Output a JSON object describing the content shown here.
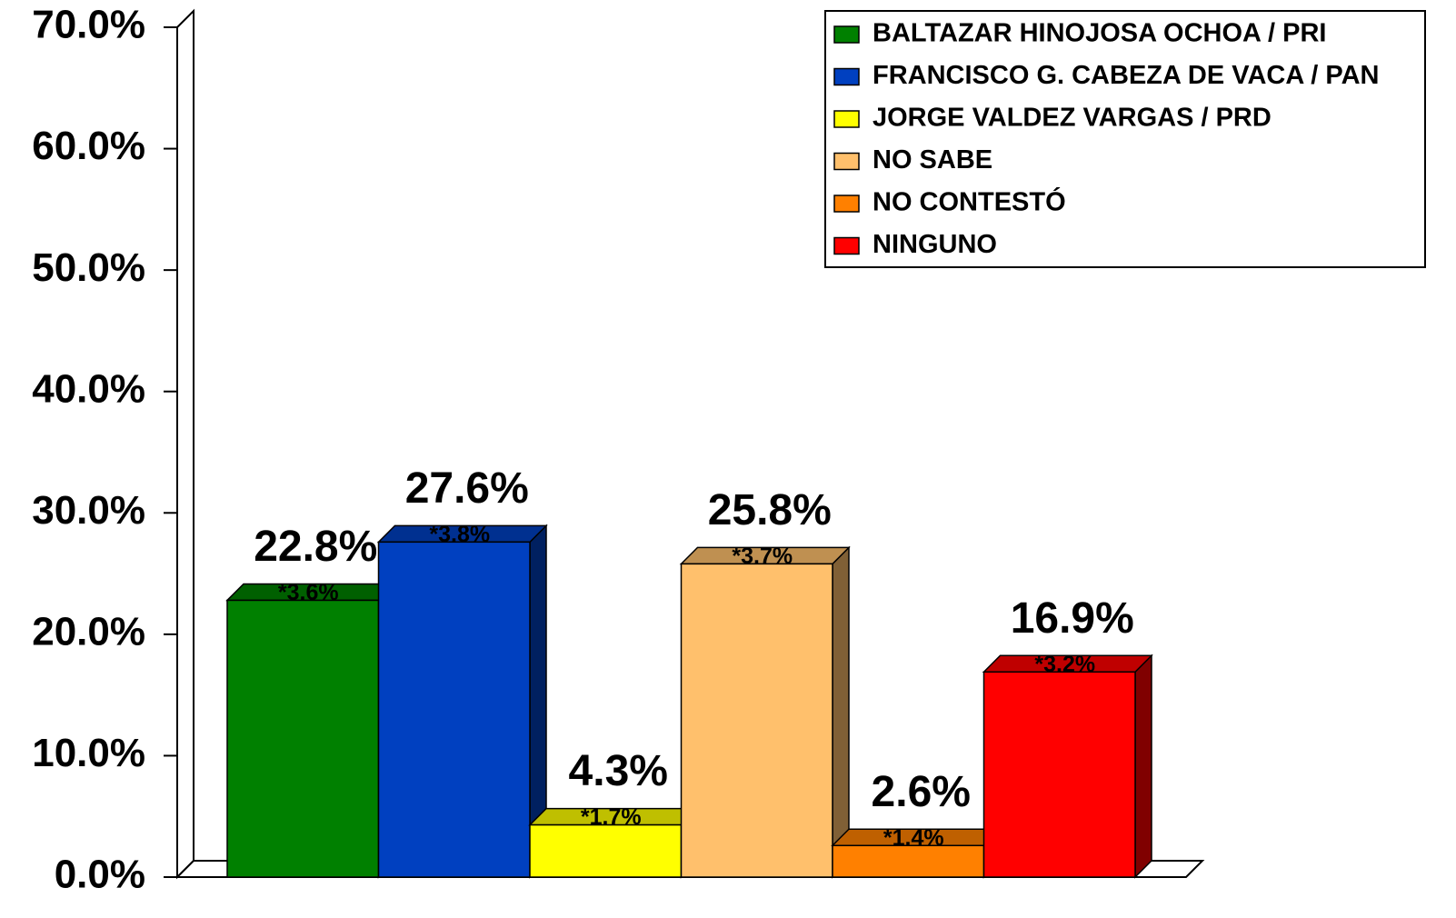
{
  "chart_data": {
    "type": "bar3d",
    "ylim": [
      0,
      70
    ],
    "yticks": [
      {
        "value": 0,
        "label": "0.0%"
      },
      {
        "value": 10,
        "label": "10.0%"
      },
      {
        "value": 20,
        "label": "20.0%"
      },
      {
        "value": 30,
        "label": "30.0%"
      },
      {
        "value": 40,
        "label": "40.0%"
      },
      {
        "value": 50,
        "label": "50.0%"
      },
      {
        "value": 60,
        "label": "60.0%"
      },
      {
        "value": 70,
        "label": "70.0%"
      }
    ],
    "legend": "top-right",
    "series": [
      {
        "name": "BALTAZAR HINOJOSA OCHOA / PRI",
        "color": "#008000",
        "values": [
          22.8
        ],
        "value_labels": [
          "22.8%"
        ],
        "error_labels": [
          "*3.6%"
        ]
      },
      {
        "name": "FRANCISCO G. CABEZA DE VACA / PAN",
        "color": "#0040c0",
        "values": [
          27.6
        ],
        "value_labels": [
          "27.6%"
        ],
        "error_labels": [
          "*3.8%"
        ]
      },
      {
        "name": "JORGE VALDEZ VARGAS / PRD",
        "color": "#ffff00",
        "values": [
          4.3
        ],
        "value_labels": [
          "4.3%"
        ],
        "error_labels": [
          "*1.7%"
        ]
      },
      {
        "name": "NO SABE",
        "color": "#ffc06c",
        "values": [
          25.8
        ],
        "value_labels": [
          "25.8%"
        ],
        "error_labels": [
          "*3.7%"
        ]
      },
      {
        "name": "NO CONTESTÓ",
        "color": "#ff8000",
        "values": [
          2.6
        ],
        "value_labels": [
          "2.6%"
        ],
        "error_labels": [
          "*1.4%"
        ]
      },
      {
        "name": "NINGUNO",
        "color": "#ff0000",
        "values": [
          16.9
        ],
        "value_labels": [
          "16.9%"
        ],
        "error_labels": [
          "*3.2%"
        ]
      }
    ]
  }
}
